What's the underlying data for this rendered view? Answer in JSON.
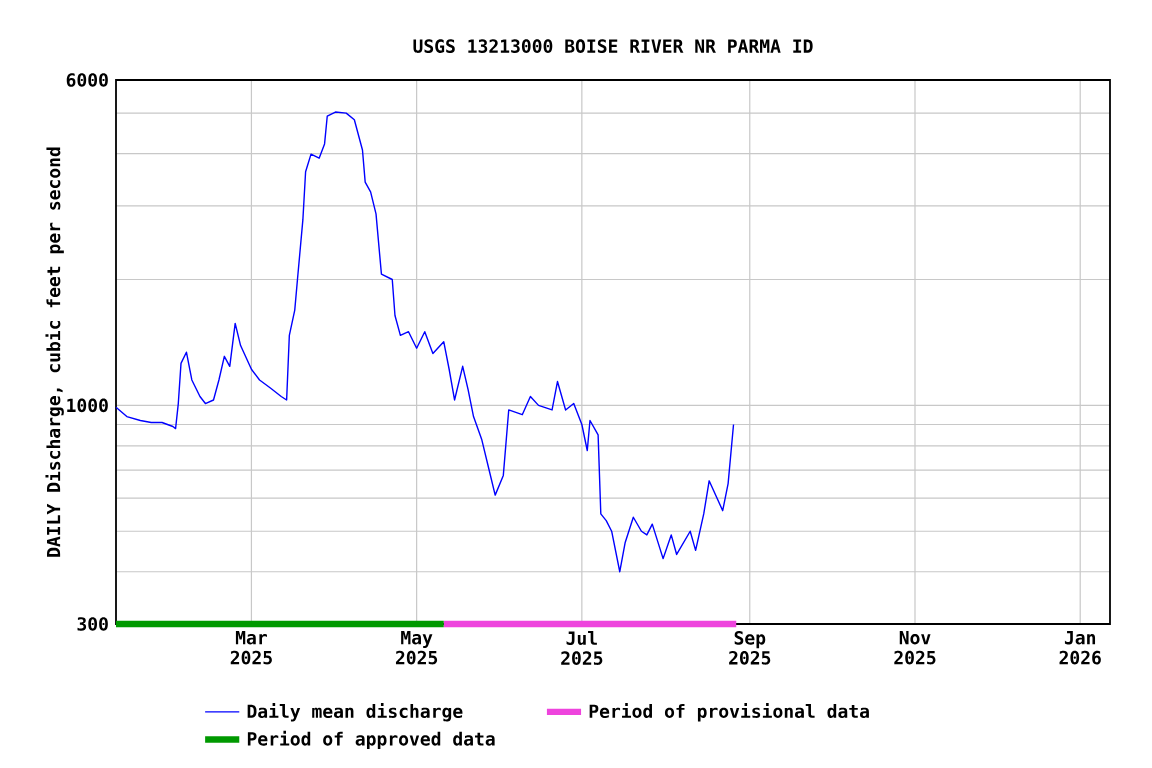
{
  "chart_data": {
    "type": "line",
    "title": "USGS 13213000 BOISE RIVER NR PARMA ID",
    "ylabel": "DAILY Discharge, cubic feet per second",
    "x": [
      "2025-01-10",
      "2025-01-14",
      "2025-01-19",
      "2025-01-23",
      "2025-01-27",
      "2025-01-31",
      "2025-02-01",
      "2025-02-02",
      "2025-02-03",
      "2025-02-05",
      "2025-02-07",
      "2025-02-10",
      "2025-02-12",
      "2025-02-15",
      "2025-02-17",
      "2025-02-19",
      "2025-02-21",
      "2025-02-23",
      "2025-02-25",
      "2025-03-01",
      "2025-03-04",
      "2025-03-08",
      "2025-03-12",
      "2025-03-14",
      "2025-03-15",
      "2025-03-17",
      "2025-03-18",
      "2025-03-20",
      "2025-03-21",
      "2025-03-23",
      "2025-03-26",
      "2025-03-28",
      "2025-03-29",
      "2025-04-01",
      "2025-04-05",
      "2025-04-08",
      "2025-04-11",
      "2025-04-12",
      "2025-04-14",
      "2025-04-16",
      "2025-04-18",
      "2025-04-22",
      "2025-04-23",
      "2025-04-25",
      "2025-04-28",
      "2025-05-01",
      "2025-05-04",
      "2025-05-07",
      "2025-05-11",
      "2025-05-13",
      "2025-05-15",
      "2025-05-18",
      "2025-05-20",
      "2025-05-22",
      "2025-05-25",
      "2025-05-28",
      "2025-05-30",
      "2025-06-02",
      "2025-06-04",
      "2025-06-09",
      "2025-06-12",
      "2025-06-15",
      "2025-06-20",
      "2025-06-22",
      "2025-06-25",
      "2025-06-28",
      "2025-07-01",
      "2025-07-03",
      "2025-07-04",
      "2025-07-07",
      "2025-07-08",
      "2025-07-10",
      "2025-07-12",
      "2025-07-15",
      "2025-07-17",
      "2025-07-20",
      "2025-07-23",
      "2025-07-25",
      "2025-07-27",
      "2025-07-31",
      "2025-08-03",
      "2025-08-05",
      "2025-08-10",
      "2025-08-12",
      "2025-08-15",
      "2025-08-17",
      "2025-08-22",
      "2025-08-24",
      "2025-08-26"
    ],
    "series": [
      {
        "name": "Daily mean discharge",
        "color": "#0000ff",
        "values": [
          990,
          940,
          920,
          910,
          910,
          890,
          880,
          1010,
          1260,
          1340,
          1150,
          1050,
          1010,
          1030,
          1150,
          1310,
          1240,
          1570,
          1390,
          1220,
          1150,
          1100,
          1050,
          1030,
          1470,
          1690,
          2000,
          2780,
          3620,
          3990,
          3900,
          4220,
          4920,
          5030,
          5000,
          4820,
          4080,
          3420,
          3240,
          2870,
          2060,
          2000,
          1640,
          1470,
          1500,
          1370,
          1500,
          1330,
          1420,
          1220,
          1030,
          1240,
          1090,
          940,
          830,
          690,
          610,
          680,
          975,
          950,
          1050,
          1000,
          975,
          1140,
          975,
          1010,
          900,
          780,
          920,
          850,
          550,
          530,
          500,
          400,
          470,
          540,
          500,
          490,
          520,
          430,
          490,
          440,
          500,
          450,
          550,
          660,
          560,
          650,
          900
        ]
      },
      {
        "name": "Period of provisional data",
        "color": "#ee44dd",
        "x": [
          "2025-05-11",
          "2025-08-27"
        ],
        "values": [
          300,
          300
        ]
      },
      {
        "name": "Period of approved data",
        "color": "#009900",
        "x": [
          "2025-01-10",
          "2025-05-11"
        ],
        "values": [
          300,
          300
        ]
      }
    ],
    "xlim": [
      "2025-01-10",
      "2026-01-12"
    ],
    "xticks": [
      {
        "value": "2025-03-01",
        "label": "Mar 2025"
      },
      {
        "value": "2025-05-01",
        "label": "May 2025"
      },
      {
        "value": "2025-07-01",
        "label": "Jul 2025"
      },
      {
        "value": "2025-09-01",
        "label": "Sep 2025"
      },
      {
        "value": "2025-11-01",
        "label": "Nov 2025"
      },
      {
        "value": "2026-01-01",
        "label": "Jan 2026"
      }
    ],
    "ylim": [
      300,
      6000
    ],
    "yticks": [
      300,
      {
        "value": 400,
        "label": null
      },
      {
        "value": 500,
        "label": null
      },
      {
        "value": 600,
        "label": null
      },
      {
        "value": 700,
        "label": null
      },
      {
        "value": 800,
        "label": null
      },
      {
        "value": 900,
        "label": null
      },
      1000,
      {
        "value": 2000,
        "label": null
      },
      {
        "value": 3000,
        "label": null
      },
      {
        "value": 4000,
        "label": null
      },
      {
        "value": 5000,
        "label": null
      },
      6000
    ],
    "log": "y",
    "grid": true,
    "legend": "bottom"
  }
}
